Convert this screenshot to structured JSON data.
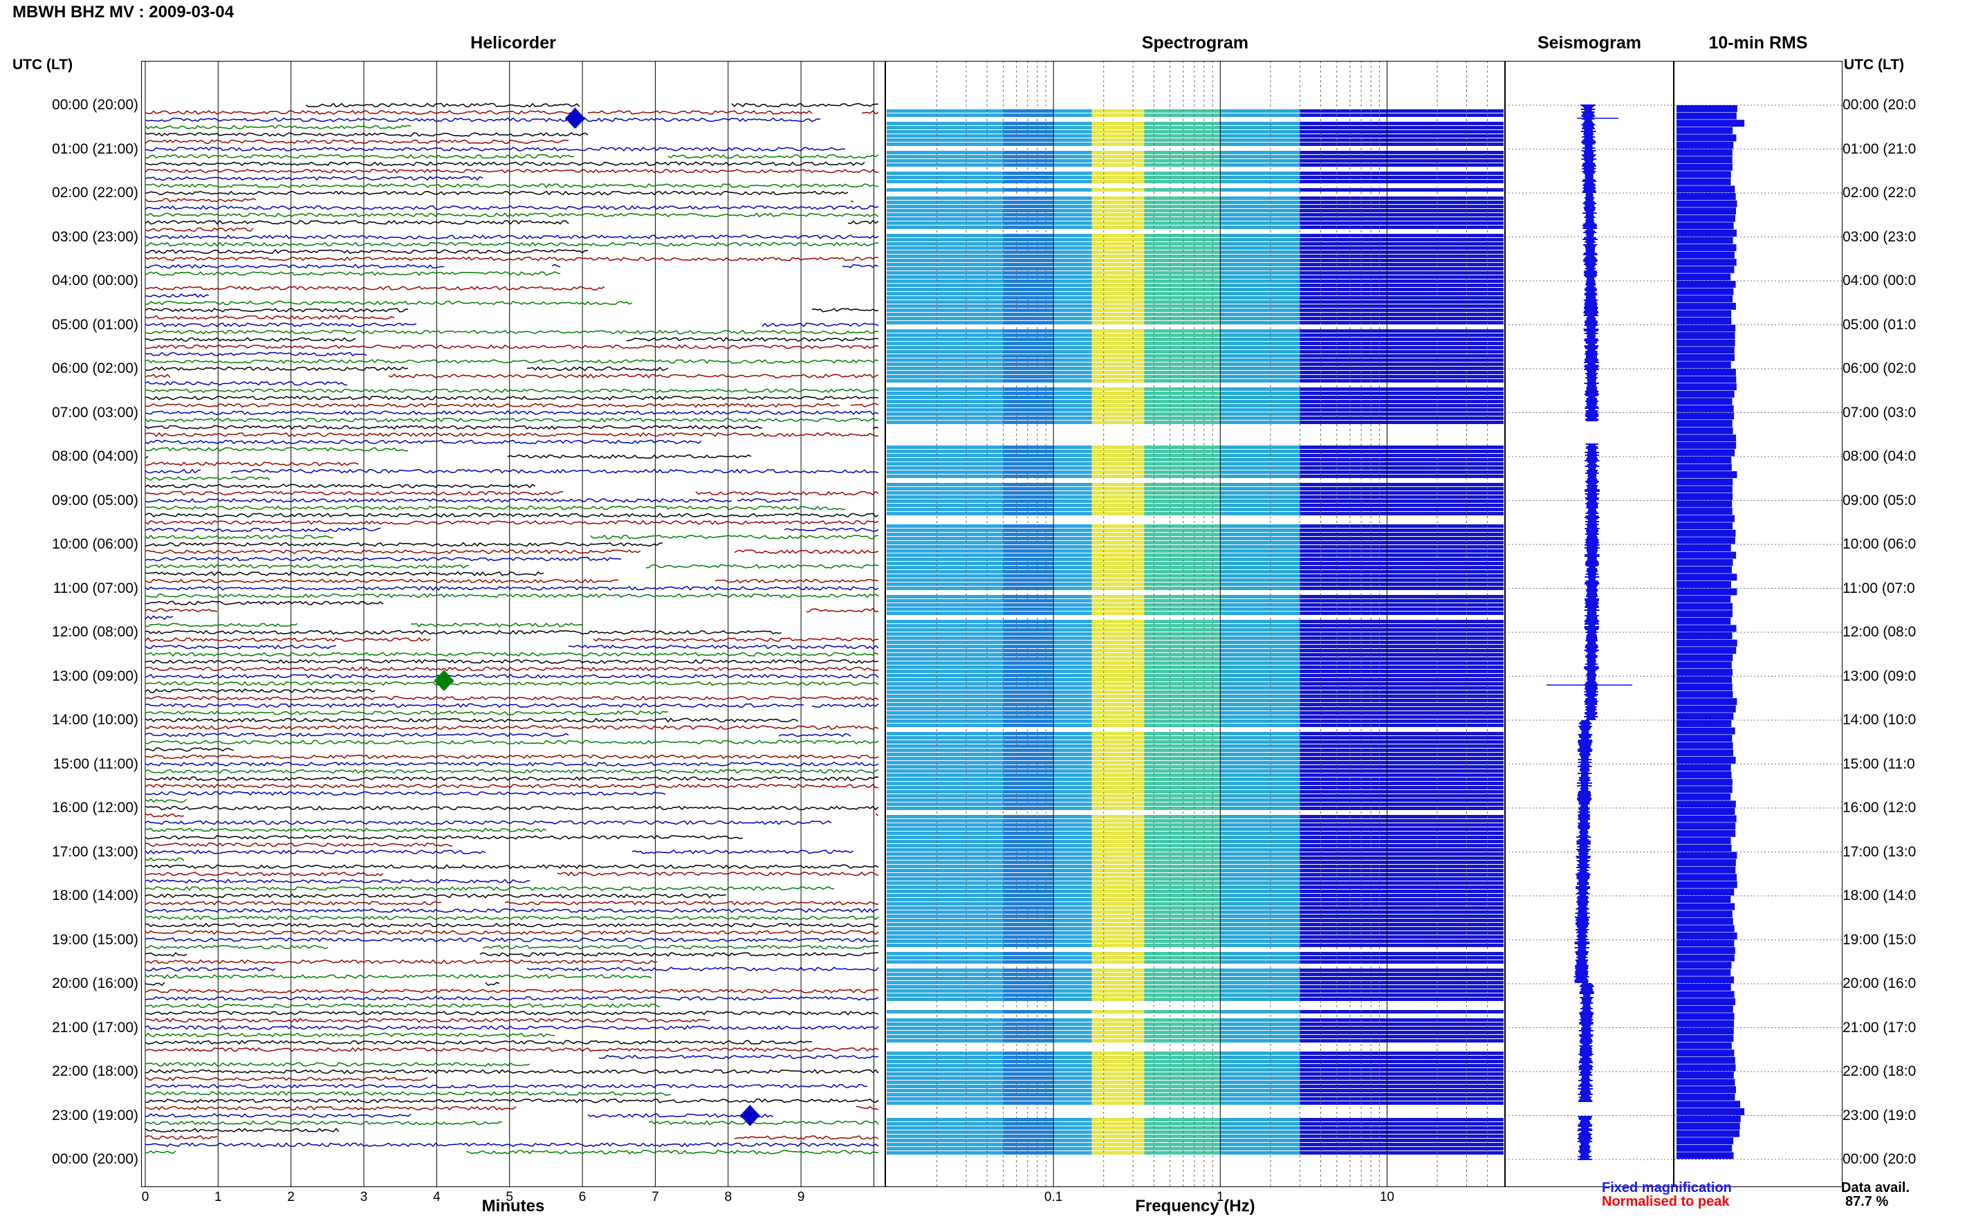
{
  "header": {
    "title": "MBWH BHZ MV : 2009-03-04",
    "utc_left": "UTC (LT)",
    "utc_right": "UTC (LT)"
  },
  "panels": {
    "helicorder": "Helicorder",
    "spectrogram": "Spectrogram",
    "seismogram": "Seismogram",
    "rms": "10-min RMS"
  },
  "time_labels": [
    "00:00 (20:00)",
    "01:00 (21:00)",
    "02:00 (22:00)",
    "03:00 (23:00)",
    "04:00 (00:00)",
    "05:00 (01:00)",
    "06:00 (02:00)",
    "07:00 (03:00)",
    "08:00 (04:00)",
    "09:00 (05:00)",
    "10:00 (06:00)",
    "11:00 (07:00)",
    "12:00 (08:00)",
    "13:00 (09:00)",
    "14:00 (10:00)",
    "15:00 (11:00)",
    "16:00 (12:00)",
    "17:00 (13:00)",
    "18:00 (14:00)",
    "19:00 (15:00)",
    "20:00 (16:00)",
    "21:00 (17:00)",
    "22:00 (18:00)",
    "23:00 (19:00)",
    "00:00 (20:00)"
  ],
  "time_labels_right": [
    "00:00 (20:0",
    "01:00 (21:0",
    "02:00 (22:0",
    "03:00 (23:0",
    "04:00 (00:0",
    "05:00 (01:0",
    "06:00 (02:0",
    "07:00 (03:0",
    "08:00 (04:0",
    "09:00 (05:0",
    "10:00 (06:0",
    "11:00 (07:0",
    "12:00 (08:0",
    "13:00 (09:0",
    "14:00 (10:0",
    "15:00 (11:0",
    "16:00 (12:0",
    "17:00 (13:0",
    "18:00 (14:0",
    "19:00 (15:0",
    "20:00 (16:0",
    "21:00 (17:0",
    "22:00 (18:0",
    "23:00 (19:0",
    "00:00 (20:0"
  ],
  "legend": {
    "fixed": "Fixed magnification",
    "normalised": "Normalised to peak",
    "data_avail_label": "Data avail.",
    "data_avail_value": "87.7 %"
  },
  "colors": {
    "trace_cycle": [
      "#000000",
      "#a00000",
      "#0000c8",
      "#008000"
    ],
    "blue": "#1010e6",
    "spectro_low": "#2ea8e0",
    "spectro_mid": "#e6e64a",
    "spectro_high": "#1414d0"
  },
  "chart_data": [
    {
      "type": "line",
      "title": "Helicorder",
      "xlabel": "Minutes",
      "x_ticks": [
        "0",
        "1",
        "2",
        "3",
        "4",
        "5",
        "6",
        "7",
        "8",
        "9"
      ],
      "xlim": [
        0,
        10
      ],
      "ylim_hours": [
        0,
        24
      ],
      "lines_per_hour": 6,
      "minutes_per_line": 10,
      "events": [
        {
          "hour": 0.3,
          "minute": 5.9,
          "color": "blue"
        },
        {
          "hour": 13.1,
          "minute": 4.1,
          "color": "green"
        },
        {
          "hour": 23.0,
          "minute": 8.3,
          "color": "blue"
        }
      ]
    },
    {
      "type": "heatmap",
      "title": "Spectrogram",
      "xlabel": "Frequency (Hz)",
      "x_scale": "log",
      "x_ticks": [
        "0.1",
        "1",
        "10"
      ],
      "xlim": [
        0.01,
        50
      ],
      "gaps_hours": [
        [
          7.2,
          7.7
        ],
        [
          22.7,
          23.0
        ]
      ],
      "dominant_band_hz": [
        0.2,
        0.3
      ]
    },
    {
      "type": "line",
      "title": "Seismogram",
      "legend": [
        "Fixed magnification",
        "Normalised to peak"
      ]
    },
    {
      "type": "bar",
      "title": "10-min RMS",
      "orientation": "horizontal"
    }
  ]
}
